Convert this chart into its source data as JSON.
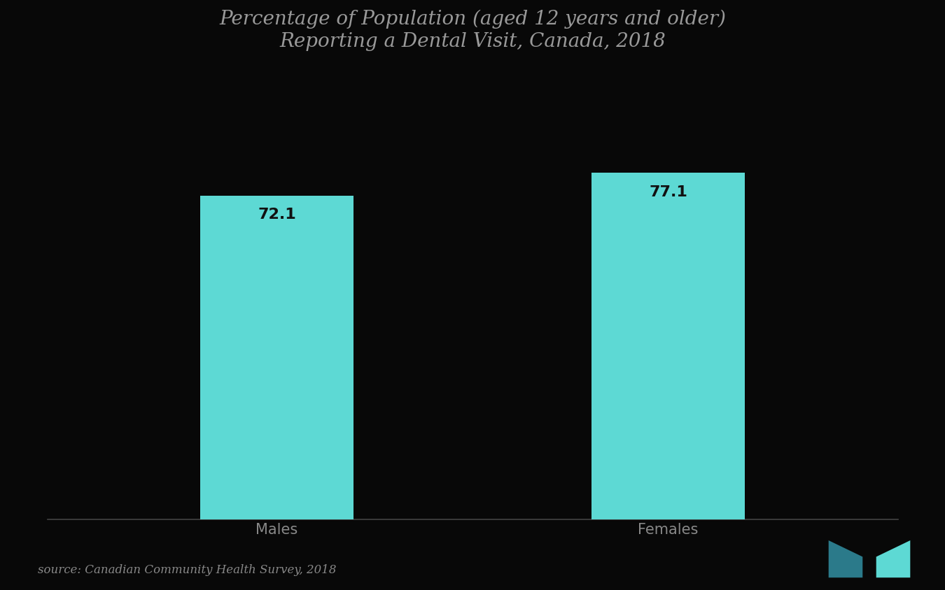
{
  "title_line1": "Percentage of Population (aged 12 years and older)",
  "title_line2": "Reporting a Dental Visit, Canada, 2018",
  "categories": [
    "Males",
    "Females"
  ],
  "values": [
    72.1,
    77.1
  ],
  "bar_color": "#5DD9D4",
  "background_color": "#080808",
  "title_color": "#999999",
  "label_color": "#888888",
  "value_color": "#111111",
  "source_text": "source: Canadian Community Health Survey, 2018",
  "ylim": [
    0,
    100
  ],
  "bar_width": 0.18,
  "title_fontsize": 20,
  "label_fontsize": 15,
  "value_fontsize": 16,
  "source_fontsize": 12,
  "x_positions": [
    0.27,
    0.73
  ]
}
